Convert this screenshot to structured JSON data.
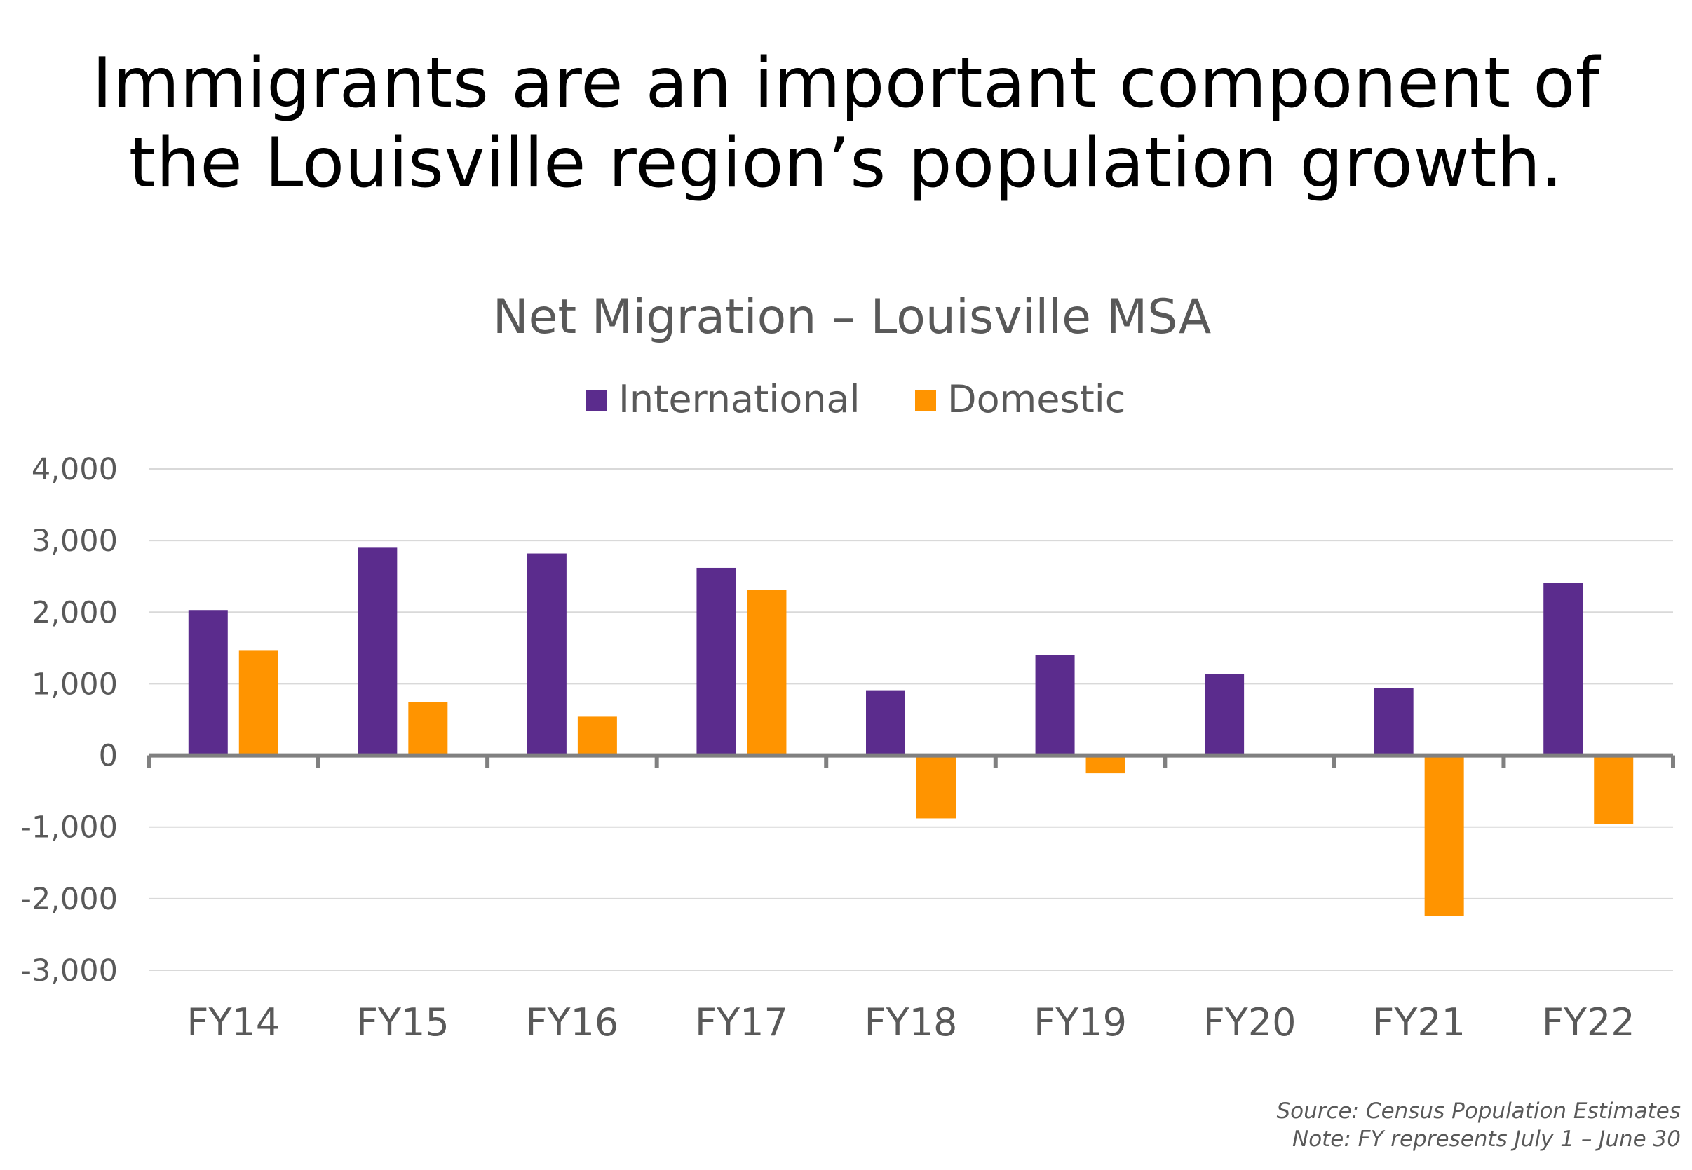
{
  "headline": {
    "line1": "Immigrants are an important component of",
    "line2": "the Louisville region’s population growth."
  },
  "chart_data": {
    "type": "bar",
    "title": "Net Migration – Louisville MSA",
    "categories": [
      "FY14",
      "FY15",
      "FY16",
      "FY17",
      "FY18",
      "FY19",
      "FY20",
      "FY21",
      "FY22"
    ],
    "series": [
      {
        "name": "International",
        "color": "#5b2c8d",
        "values": [
          2030,
          2900,
          2820,
          2620,
          910,
          1400,
          1140,
          940,
          2410
        ]
      },
      {
        "name": "Domestic",
        "color": "#ff9400",
        "values": [
          1470,
          740,
          540,
          2310,
          -880,
          -250,
          0,
          -2240,
          -960
        ]
      }
    ],
    "ylim": [
      -3000,
      4000
    ],
    "yticks": [
      4000,
      3000,
      2000,
      1000,
      0,
      -1000,
      -2000,
      -3000
    ],
    "ytick_labels": [
      "4,000",
      "3,000",
      "2,000",
      "1,000",
      "0",
      "-1,000",
      "-2,000",
      "-3,000"
    ],
    "xlabel": "",
    "ylabel": "",
    "legend": "top",
    "grid": true
  },
  "footer": {
    "source": "Source: Census Population Estimates",
    "note": "Note: FY represents July 1 – June 30"
  }
}
